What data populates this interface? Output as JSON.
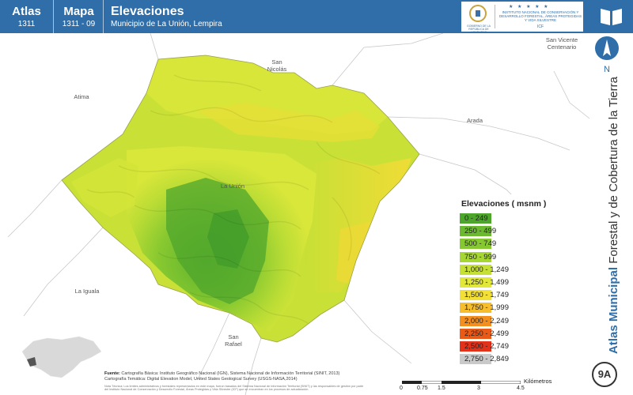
{
  "header": {
    "atlas_label": "Atlas",
    "atlas_number": "1311",
    "mapa_label": "Mapa",
    "mapa_number": "1311 - 09",
    "title": "Elevaciones",
    "subtitle": "Municipio de La Unión, Lempira",
    "logo_left_text": "GOBIERNO DE LA REPÚBLICA DE HONDURAS",
    "logo_right_text": "INSTITUTO NACIONAL DE CONSERVACIÓN Y DESARROLLO FORESTAL, ÁREAS PROTEGIDAS Y VIDA SILVESTRE",
    "logo_right_abbr": "ICF",
    "logo_stars": "★ ★ ★ ★ ★"
  },
  "sidebar": {
    "book_icon": "open-book-icon",
    "north_icon": "north-arrow-icon",
    "north_label": "N",
    "vertical_bold": "Atlas Municipal",
    "vertical_rest": " Forestal y de Cobertura de la Tierra",
    "page_badge": "9A"
  },
  "places": {
    "san_vicente_1": "San Vicente",
    "san_vicente_2": "Centenario",
    "san_nicolas_1": "San",
    "san_nicolas_2": "Nicolás",
    "atima": "Atima",
    "arada": "Arada",
    "la_union": "La Unión",
    "la_iguala": "La Iguala",
    "san_rafael_1": "San",
    "san_rafael_2": "Rafael"
  },
  "legend": {
    "title": "Elevaciones ( msnm )",
    "items": [
      {
        "label": "0 - 249",
        "color": "#4ea52c"
      },
      {
        "label": "250 - 499",
        "color": "#6bb92e"
      },
      {
        "label": "500 - 749",
        "color": "#86c830"
      },
      {
        "label": "750 - 999",
        "color": "#a5d633"
      },
      {
        "label": "1,000 - 1,249",
        "color": "#c6e036"
      },
      {
        "label": "1,250 - 1,499",
        "color": "#e1e83a"
      },
      {
        "label": "1,500 - 1,749",
        "color": "#f3e036"
      },
      {
        "label": "1,750 - 1,999",
        "color": "#f6bd2c"
      },
      {
        "label": "2,000 - 2,249",
        "color": "#f28f1f"
      },
      {
        "label": "2,250 - 2,499",
        "color": "#ea5a17"
      },
      {
        "label": "2,500 - 2,749",
        "color": "#e2321a"
      },
      {
        "label": "2,750 - 2,849",
        "color": "#c9c9c9"
      }
    ]
  },
  "footer": {
    "sources_label": "Fuente:",
    "sources_line1": "Cartografía Básica: Instituto Geográfico Nacional (IGN), Sistema Nacional de Información Territorial (SINIT, 2013)",
    "sources_line2": "Cartografía Temática: Digital Elevation Model, United States Geological Survey (USGS-NASA,2014)",
    "sources_fine": "Nota Técnica: Los límites administrativos y forestales representados en este mapa, fueron basados del Sistema Nacional de Información Territorial (SINIT) y las responsables de gestión por parte del Instituto Nacional de Conservación y Desarrollo Forestal, Áreas Protegidas y Vida Silvestre (ICF) que se encuentran en los procesos de actualización.",
    "scale_ticks": [
      "0",
      "0.75",
      "1.5",
      "3",
      "4.5"
    ],
    "scale_unit": "Kilómetros"
  }
}
